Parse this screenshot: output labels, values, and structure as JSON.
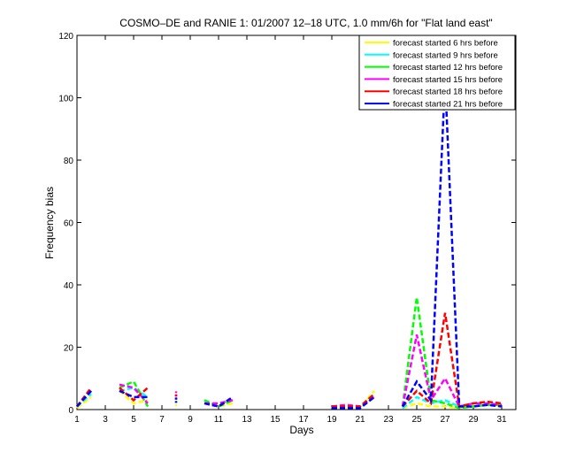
{
  "chart_data": {
    "type": "line",
    "title": "COSMO–DE and RANIE 1: 01/2007 12–18 UTC, 1.0 mm/6h for \"Flat land east\"",
    "xlabel": "Days",
    "ylabel": "Frequency bias",
    "xlim": [
      1,
      32
    ],
    "ylim": [
      0,
      120
    ],
    "x_ticks": [
      "1",
      "3",
      "5",
      "7",
      "9",
      "11",
      "13",
      "15",
      "17",
      "19",
      "21",
      "23",
      "25",
      "27",
      "29",
      "31"
    ],
    "y_ticks": [
      "0",
      "20",
      "40",
      "60",
      "80",
      "100",
      "120"
    ],
    "legend_position": "top-right",
    "x": [
      1,
      2,
      3,
      4,
      5,
      6,
      7,
      8,
      9,
      10,
      11,
      12,
      13,
      14,
      15,
      16,
      17,
      18,
      19,
      20,
      21,
      22,
      23,
      24,
      25,
      26,
      27,
      28,
      29,
      30,
      31
    ],
    "series": [
      {
        "name": "forecast started 6 hrs before",
        "color": "#ffff00",
        "values": [
          0.5,
          4,
          null,
          6,
          2,
          3,
          null,
          2,
          null,
          2,
          1,
          2,
          null,
          null,
          null,
          null,
          null,
          null,
          0.5,
          0.8,
          0.5,
          6,
          null,
          0.5,
          2,
          1,
          1,
          0.5,
          1,
          1.5,
          1
        ]
      },
      {
        "name": "forecast started 9 hrs before",
        "color": "#00ffff",
        "values": [
          1,
          5,
          null,
          6,
          7,
          4,
          null,
          3,
          null,
          3,
          1,
          3,
          null,
          null,
          null,
          null,
          null,
          null,
          0.5,
          1,
          0.5,
          4,
          null,
          0.5,
          4,
          2,
          3,
          1,
          1,
          2,
          1.5
        ]
      },
      {
        "name": "forecast started 12 hrs before",
        "color": "#00ff00",
        "values": [
          1,
          6,
          null,
          7,
          9,
          1,
          null,
          4,
          null,
          3,
          1,
          3,
          null,
          null,
          null,
          null,
          null,
          null,
          0.5,
          1,
          1,
          5,
          null,
          1,
          36,
          3,
          2,
          0.5,
          1,
          1.5,
          1.5
        ]
      },
      {
        "name": "forecast started 15 hrs before",
        "color": "#ff00ff",
        "values": [
          1,
          6,
          null,
          8,
          7,
          2,
          null,
          5,
          null,
          2,
          2,
          3,
          null,
          null,
          null,
          null,
          null,
          null,
          1,
          1.5,
          1,
          4,
          null,
          1,
          24,
          3,
          10,
          1,
          2,
          2,
          1.5
        ]
      },
      {
        "name": "forecast started 18 hrs before",
        "color": "#ff0000",
        "values": [
          1,
          7,
          null,
          7,
          3,
          7,
          null,
          4,
          null,
          2,
          1,
          4,
          null,
          null,
          null,
          null,
          null,
          null,
          1,
          1,
          1,
          5,
          null,
          1,
          6,
          2,
          31,
          1,
          2,
          2.5,
          2
        ]
      },
      {
        "name": "forecast started 21 hrs before",
        "color": "#0000ff",
        "values": [
          1,
          6,
          null,
          6,
          4,
          4,
          null,
          3,
          null,
          2,
          1,
          4,
          null,
          null,
          null,
          null,
          null,
          null,
          0.5,
          0.5,
          0.5,
          4,
          null,
          1,
          9,
          3,
          106,
          1,
          1,
          1.5,
          1
        ]
      }
    ]
  }
}
